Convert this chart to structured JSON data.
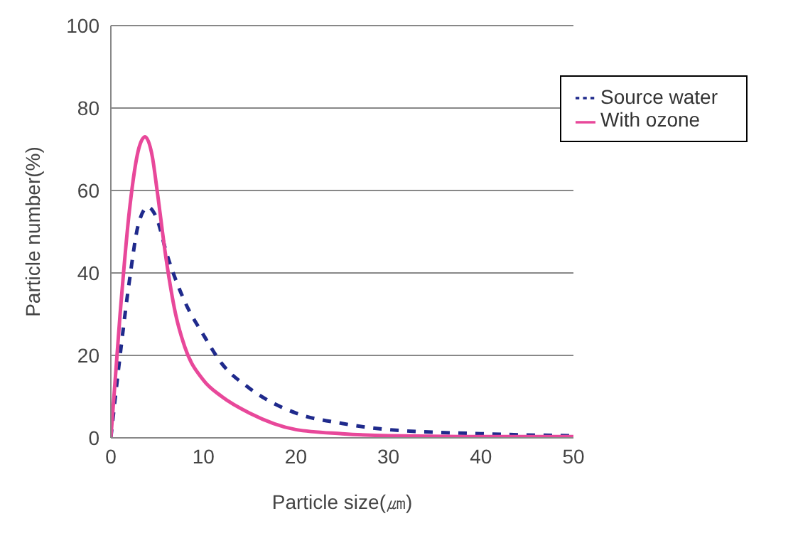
{
  "chart_data": {
    "type": "line",
    "xlabel": "Particle size(㎛)",
    "ylabel": "Particle number(%)",
    "xlim": [
      0,
      50
    ],
    "xticks": [
      0,
      10,
      20,
      30,
      40,
      50
    ],
    "ylim": [
      0,
      100
    ],
    "yticks": [
      0,
      20,
      40,
      60,
      80,
      100
    ],
    "grid": "y",
    "legend": "top right",
    "marker": "none",
    "series": [
      {
        "name": "Source water",
        "color": "#1f2a8c",
        "line_style": "dashed",
        "x": [
          0,
          1,
          2,
          3,
          4,
          5,
          6,
          8,
          10,
          12,
          15,
          20,
          25,
          30,
          40,
          50
        ],
        "values": [
          0,
          20,
          38,
          52,
          56,
          53,
          45,
          33,
          25,
          18,
          12,
          6,
          3.5,
          2,
          1,
          0.5
        ]
      },
      {
        "name": "With ozone",
        "color": "#e8489a",
        "line_style": "solid",
        "x": [
          0,
          1,
          2,
          3,
          3.7,
          4.5,
          5,
          6,
          7,
          8,
          10,
          12,
          15,
          20,
          25,
          30,
          40,
          50
        ],
        "values": [
          0,
          30,
          55,
          70,
          73,
          68,
          60,
          43,
          30,
          22,
          14,
          10,
          6,
          2,
          1,
          0.5,
          0.3,
          0.3
        ]
      }
    ]
  }
}
